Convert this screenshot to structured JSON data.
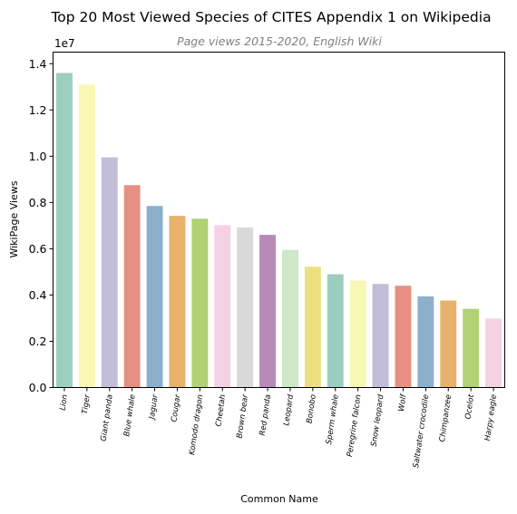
{
  "chart_data": {
    "type": "bar",
    "title": "Top 20 Most Viewed Species of CITES Appendix 1 on Wikipedia",
    "subtitle": "Page views 2015-2020, English Wiki",
    "xlabel": "Common Name",
    "ylabel": "WikiPage Views",
    "y_multiplier_label": "1e7",
    "ylim": [
      0,
      14500000
    ],
    "yticks": [
      0,
      2000000,
      4000000,
      6000000,
      8000000,
      10000000,
      12000000,
      14000000
    ],
    "ytick_labels": [
      "0.0",
      "0.2",
      "0.4",
      "0.6",
      "0.8",
      "1.0",
      "1.2",
      "1.4"
    ],
    "grid": false,
    "categories": [
      "Lion",
      "Tiger",
      "Giant panda",
      "Blue whale",
      "Jaguar",
      "Cougar",
      "Komodo dragon",
      "Cheetah",
      "Brown bear",
      "Red panda",
      "Leopard",
      "Bonobo",
      "Sperm whale",
      "Peregrine falcon",
      "Snow leopard",
      "Wolf",
      "Saltwater crocodile",
      "Chimpanzee",
      "Ocelot",
      "Harpy eagle"
    ],
    "values": [
      13600000,
      13100000,
      9950000,
      8750000,
      7850000,
      7420000,
      7300000,
      7020000,
      6920000,
      6600000,
      5950000,
      5220000,
      4900000,
      4620000,
      4480000,
      4400000,
      3940000,
      3760000,
      3400000,
      2980000
    ],
    "colors": [
      "#9ccec0",
      "#f8f7b4",
      "#c2bed9",
      "#e88f83",
      "#8cb0cc",
      "#e8b16e",
      "#b1d175",
      "#f4d1e3",
      "#d9d9d9",
      "#b78ab9",
      "#cde7c8",
      "#eddf7f",
      "#9ccec0",
      "#f8f7b4",
      "#c2bed9",
      "#e88f83",
      "#8cb0cc",
      "#e8b16e",
      "#b1d175",
      "#f4d1e3"
    ]
  }
}
